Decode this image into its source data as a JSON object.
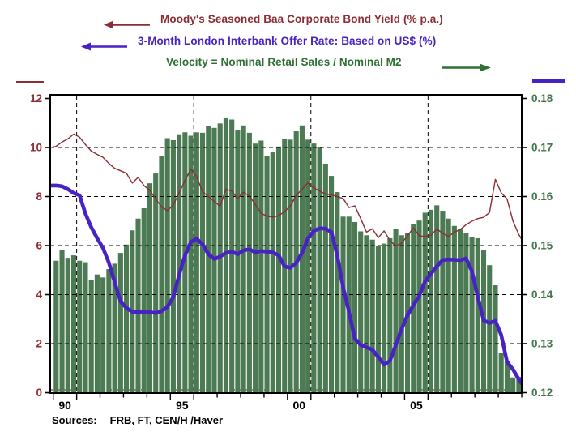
{
  "chart_data": {
    "type": "combo-bar-line",
    "frequency": "quarterly",
    "start_period": "1989Q1",
    "end_period": "2008Q4",
    "legend": [
      {
        "text": "Moody's Seasoned Baa Corporate Bond Yield (% p.a.)",
        "color": "#8b2d33",
        "arrow": "left",
        "series": "baa"
      },
      {
        "text": "3-Month London Interbank Offer Rate: Based on US$ (%)",
        "color": "#4823c4",
        "arrow": "left",
        "series": "libor"
      },
      {
        "text": "Velocity = Nominal Retail Sales / Nominal M2",
        "color": "#2e7033",
        "arrow": "right",
        "series": "velocity"
      }
    ],
    "left_axis": {
      "min": 0,
      "max": 12,
      "ticks": [
        "0",
        "2",
        "4",
        "6",
        "8",
        "10",
        "12"
      ],
      "tick_values": [
        0,
        2,
        4,
        6,
        8,
        10,
        12
      ],
      "color": "#8b2d33"
    },
    "right_axis": {
      "min": 0.12,
      "max": 0.18,
      "ticks": [
        "0.12",
        "0.13",
        "0.14",
        "0.15",
        "0.16",
        "0.17",
        "0.18"
      ],
      "tick_values": [
        0.12,
        0.13,
        0.14,
        0.15,
        0.16,
        0.17,
        0.18
      ],
      "color": "#41774a"
    },
    "x_axis": {
      "first_year": 1989,
      "last_year": 2009,
      "labels": [
        {
          "text": "90",
          "center_year": 1989.5
        },
        {
          "text": "95",
          "center_year": 1994.5
        },
        {
          "text": "00",
          "center_year": 1999.5
        },
        {
          "text": "05",
          "center_year": 2004.5
        }
      ],
      "major_tick_years": [
        1989,
        1990,
        1994,
        1995,
        1999,
        2000,
        2004,
        2005
      ],
      "gridline_years": [
        1990,
        1995,
        2000,
        2005
      ]
    },
    "gridlines": {
      "horizontal_left_values": [
        2,
        4,
        6,
        8,
        10
      ],
      "style": "dashed",
      "color": "#000000",
      "zero_line_color": "#8b2d33"
    },
    "series": [
      {
        "name": "velocity",
        "type": "bar",
        "axis": "right",
        "color": "#4c7b53",
        "values": [
          0.1469,
          0.1491,
          0.1475,
          0.148,
          0.1469,
          0.1466,
          0.143,
          0.1441,
          0.1435,
          0.1452,
          0.1463,
          0.1485,
          0.1502,
          0.1531,
          0.1555,
          0.1576,
          0.1627,
          0.1647,
          0.1683,
          0.1719,
          0.1715,
          0.1727,
          0.1731,
          0.1724,
          0.1731,
          0.173,
          0.1744,
          0.174,
          0.1749,
          0.176,
          0.1757,
          0.1736,
          0.1745,
          0.173,
          0.1708,
          0.1714,
          0.1683,
          0.169,
          0.1702,
          0.1718,
          0.1716,
          0.1733,
          0.1745,
          0.1716,
          0.1708,
          0.17,
          0.1667,
          0.1642,
          0.1609,
          0.1559,
          0.1559,
          0.1548,
          0.1529,
          0.1521,
          0.1512,
          0.1499,
          0.1504,
          0.1515,
          0.1534,
          0.1521,
          0.1526,
          0.1543,
          0.1551,
          0.1567,
          0.1573,
          0.1582,
          0.1571,
          0.1555,
          0.154,
          0.1533,
          0.1526,
          0.1518,
          0.1515,
          0.149,
          0.146,
          0.1419,
          0.1281,
          0.1264,
          0.1231,
          0.1232
        ]
      },
      {
        "name": "baa",
        "type": "line",
        "axis": "left",
        "color": "#8b2d33",
        "stroke_width": 1.4,
        "edge_start": 10.0,
        "edge_end": 6.28,
        "values": [
          10.05,
          10.22,
          10.35,
          10.55,
          10.42,
          10.12,
          9.85,
          9.72,
          9.6,
          9.35,
          9.15,
          9.05,
          8.95,
          8.55,
          8.78,
          8.45,
          8.25,
          7.9,
          7.58,
          7.42,
          7.65,
          8.15,
          8.65,
          9.12,
          8.8,
          8.2,
          8.0,
          7.8,
          7.6,
          8.3,
          8.22,
          7.92,
          8.18,
          8.02,
          7.68,
          7.32,
          7.2,
          7.16,
          7.22,
          7.38,
          7.62,
          8.05,
          8.3,
          8.56,
          8.35,
          8.22,
          8.1,
          8.07,
          8.0,
          7.92,
          7.55,
          7.62,
          7.1,
          6.55,
          6.68,
          6.32,
          6.6,
          6.2,
          5.98,
          6.1,
          6.4,
          6.72,
          6.4,
          6.37,
          6.42,
          6.68,
          6.5,
          6.37,
          6.55,
          6.65,
          6.85,
          7.0,
          7.1,
          7.15,
          7.35,
          8.7,
          8.15,
          7.9,
          7.0,
          6.45
        ]
      },
      {
        "name": "libor",
        "type": "line",
        "axis": "left",
        "color": "#4823c4",
        "stroke_width": 4.6,
        "edge_start": 8.45,
        "edge_end": 0.4,
        "values": [
          8.45,
          8.42,
          8.3,
          8.14,
          8.05,
          7.3,
          6.74,
          6.3,
          5.9,
          5.3,
          4.5,
          3.72,
          3.45,
          3.3,
          3.28,
          3.3,
          3.28,
          3.25,
          3.32,
          3.5,
          3.9,
          4.8,
          5.6,
          6.15,
          6.28,
          6.05,
          5.65,
          5.45,
          5.55,
          5.7,
          5.75,
          5.65,
          5.8,
          5.85,
          5.72,
          5.78,
          5.75,
          5.72,
          5.6,
          5.15,
          5.09,
          5.3,
          5.7,
          6.3,
          6.6,
          6.7,
          6.69,
          6.55,
          5.6,
          4.3,
          3.3,
          2.2,
          1.95,
          1.85,
          1.75,
          1.45,
          1.14,
          1.3,
          1.95,
          2.6,
          3.15,
          3.57,
          3.95,
          4.55,
          4.85,
          5.15,
          5.41,
          5.43,
          5.42,
          5.4,
          5.47,
          4.95,
          3.9,
          2.95,
          2.84,
          2.93,
          2.35,
          1.25,
          0.95,
          0.55
        ]
      }
    ]
  },
  "footer": {
    "sources_label": "Sources:",
    "sources_value": "FRB, FT, CEN/H /Haver"
  }
}
